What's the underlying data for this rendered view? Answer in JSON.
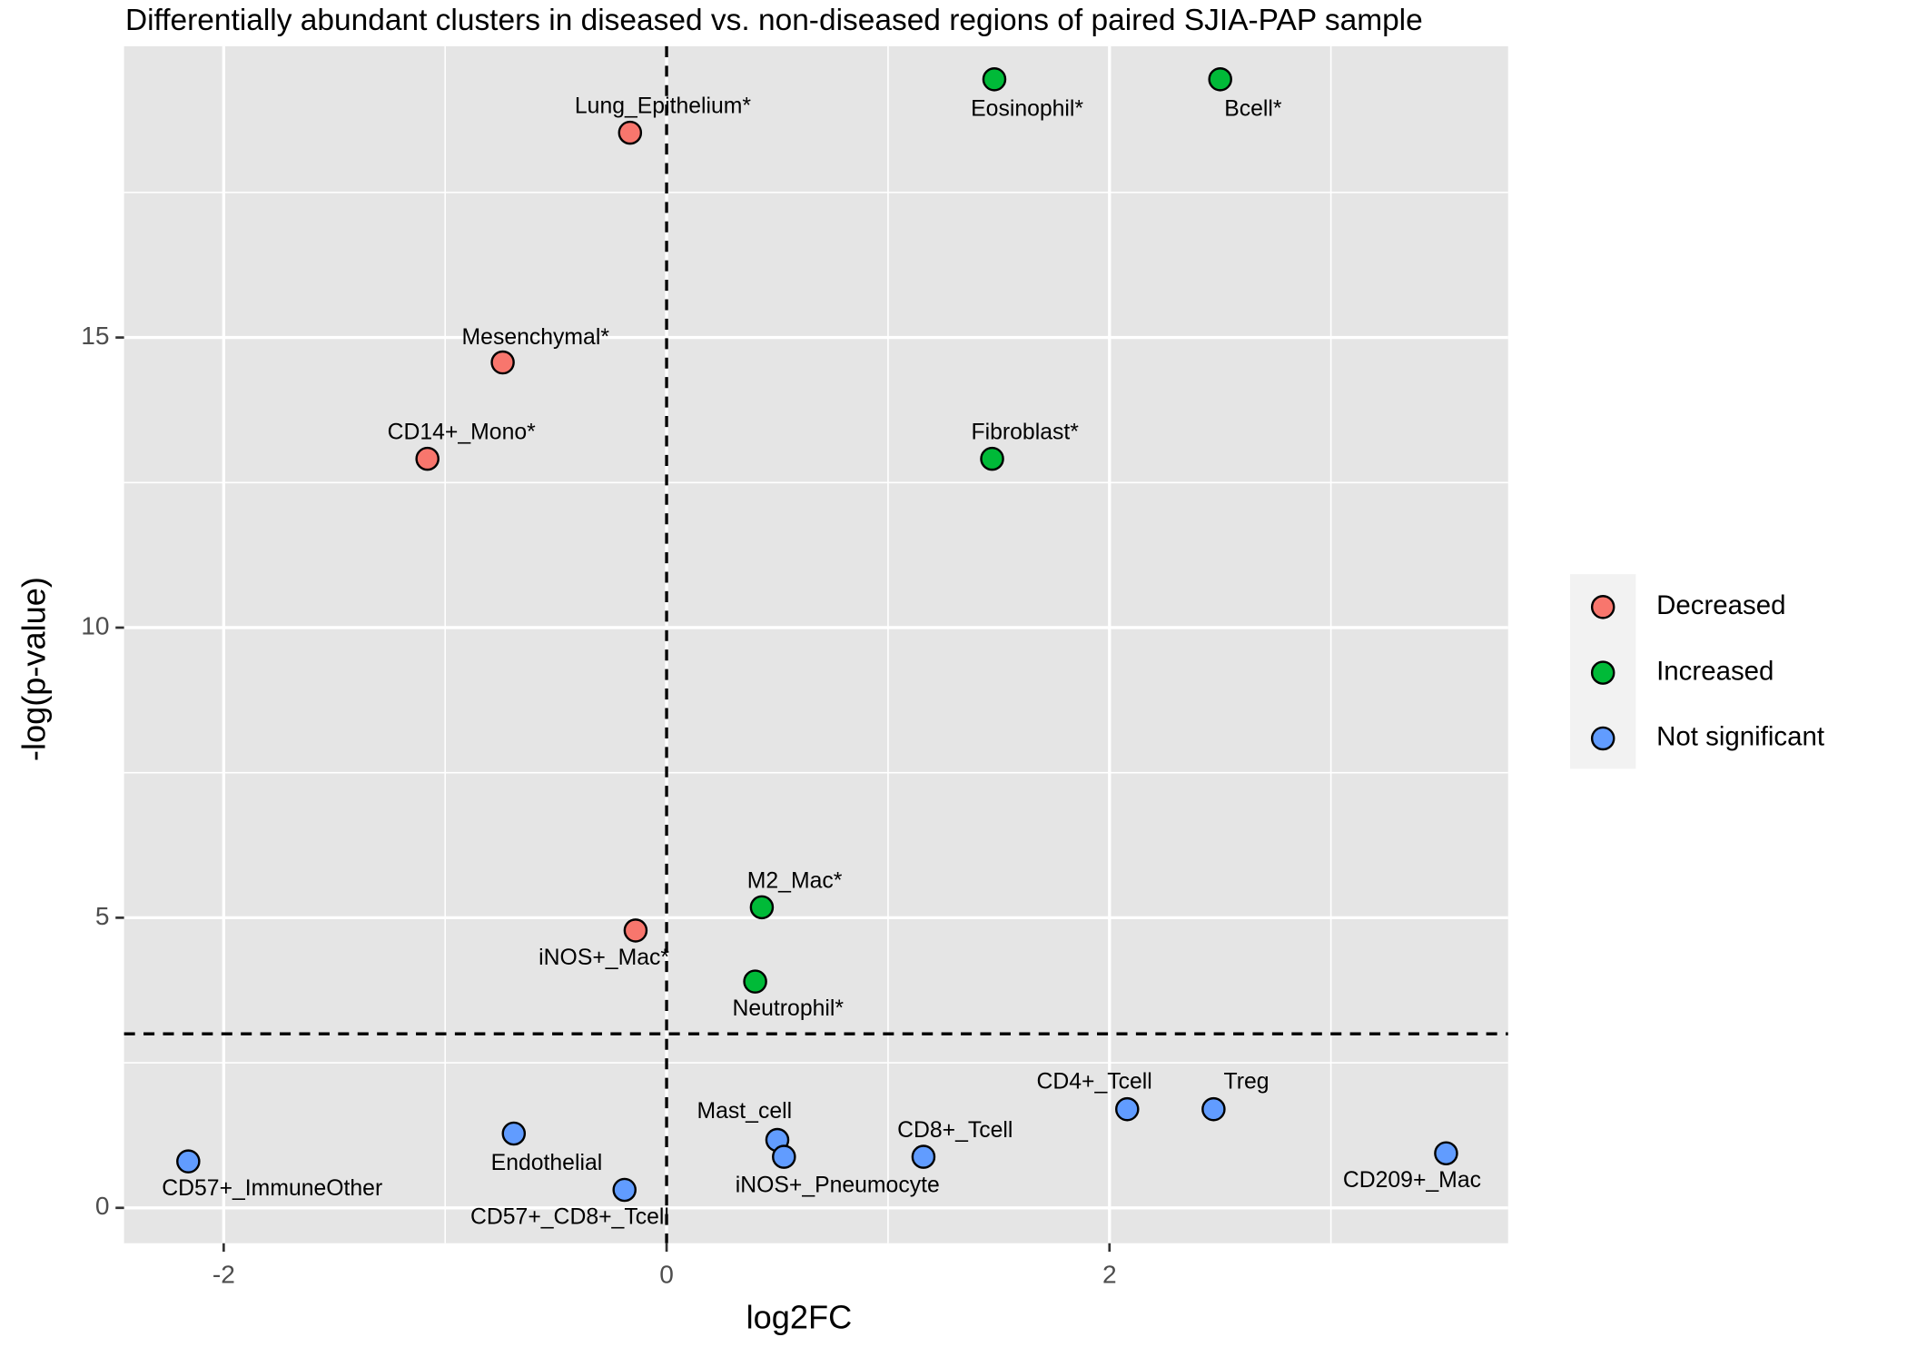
{
  "chart_data": {
    "type": "scatter",
    "title": "Differentially abundant clusters in diseased vs. non-diseased regions of paired SJIA-PAP sample",
    "x_label": "log2FC",
    "y_label": "-log(p-value)",
    "series": [
      {
        "name": "Decreased",
        "color": "#F8766D",
        "labels": [
          "Lung_Epithelium*",
          "Mesenchymal*",
          "CD14+_Mono*",
          "iNOS+_Mac*"
        ],
        "x": [
          -0.165,
          -0.74,
          -1.08,
          -0.14
        ],
        "values": [
          18.53,
          14.57,
          12.91,
          4.78
        ]
      },
      {
        "name": "Increased",
        "color": "#00BA38",
        "labels": [
          "Eosinophil*",
          "Bcell*",
          "Fibroblast*",
          "M2_Mac*",
          "Neutrophil*"
        ],
        "x": [
          1.48,
          2.5,
          1.47,
          0.43,
          0.4
        ],
        "values": [
          19.45,
          19.45,
          12.91,
          5.18,
          3.9
        ]
      },
      {
        "name": "Not significant",
        "color": "#619CFF",
        "labels": [
          "CD57+_ImmuneOther",
          "Endothelial",
          "CD57+_CD8+_Tcell",
          "Mast_cell",
          "iNOS+_Pneumocyte",
          "CD8+_Tcell",
          "CD4+_Tcell",
          "Treg",
          "CD209+_Mac"
        ],
        "x": [
          -2.16,
          -0.69,
          -0.19,
          0.5,
          0.53,
          1.16,
          2.08,
          2.47,
          3.52
        ],
        "values": [
          0.8,
          1.28,
          0.31,
          1.17,
          0.88,
          0.88,
          1.7,
          1.7,
          0.94
        ]
      }
    ],
    "xlim": [
      -2.45,
      3.8
    ],
    "ylim": [
      -0.61,
      20.02
    ],
    "xticks": [
      -2,
      0,
      2
    ],
    "yticks": [
      0,
      5,
      10,
      15
    ],
    "x_minor_grid": [
      -1,
      1,
      3
    ],
    "y_minor_grid": [
      2.5,
      7.5,
      12.5,
      17.5
    ],
    "vline": 0,
    "hline": 3,
    "grid": true,
    "legend": "right"
  }
}
